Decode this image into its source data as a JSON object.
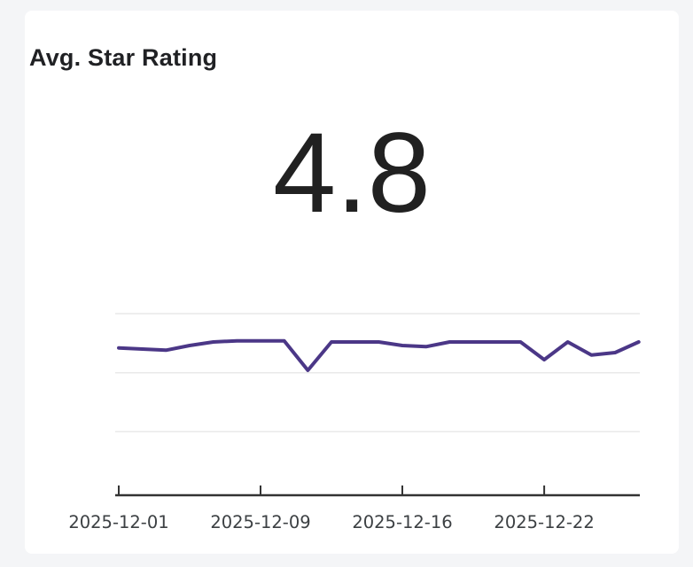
{
  "page": {
    "background": "#f4f5f7"
  },
  "card": {
    "title": "Avg. Star Rating",
    "metric_value": "4.8",
    "background": "#ffffff"
  },
  "chart_data": {
    "type": "line",
    "title": "Avg. Star Rating",
    "series": [
      {
        "name": "Avg. Star Rating",
        "values": [
          4.71,
          4.7,
          4.69,
          4.73,
          4.76,
          4.77,
          4.77,
          4.77,
          4.52,
          4.76,
          4.76,
          4.76,
          4.73,
          4.72,
          4.76,
          4.76,
          4.76,
          4.76,
          4.61,
          4.76,
          4.65,
          4.67,
          4.76
        ]
      }
    ],
    "x_tick_labels": [
      "2025-12-01",
      "2025-12-09",
      "2025-12-16",
      "2025-12-22"
    ],
    "x_tick_indexes": [
      0,
      6,
      12,
      18
    ],
    "xlabel": "",
    "ylabel": "",
    "ylim": [
      3.5,
      5.0
    ],
    "gridline_values": [
      5.0,
      4.5,
      4.0
    ],
    "grid": true,
    "legend": "none",
    "line_color": "#4b3787",
    "axis_color": "#333333",
    "gridline_color": "#e9e9e9",
    "label_color": "#3c4043"
  }
}
